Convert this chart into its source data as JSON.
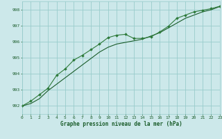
{
  "title": "Graphe pression niveau de la mer (hPa)",
  "background_color": "#cce8ea",
  "grid_color": "#99cccc",
  "line_color_dark": "#1a5c2a",
  "line_color_mid": "#2d7a3a",
  "xlim": [
    0,
    23
  ],
  "ylim": [
    991.5,
    998.5
  ],
  "yticks": [
    992,
    993,
    994,
    995,
    996,
    997,
    998
  ],
  "xticks": [
    0,
    1,
    2,
    3,
    4,
    5,
    6,
    7,
    8,
    9,
    10,
    11,
    12,
    13,
    14,
    15,
    16,
    17,
    18,
    19,
    20,
    21,
    22,
    23
  ],
  "hours": [
    0,
    1,
    2,
    3,
    4,
    5,
    6,
    7,
    8,
    9,
    10,
    11,
    12,
    13,
    14,
    15,
    16,
    17,
    18,
    19,
    20,
    21,
    22,
    23
  ],
  "pressure_main": [
    992.0,
    992.3,
    992.7,
    993.1,
    993.9,
    994.3,
    994.85,
    995.15,
    995.5,
    995.85,
    996.25,
    996.4,
    996.45,
    996.2,
    996.2,
    996.3,
    996.6,
    996.95,
    997.45,
    997.65,
    997.85,
    997.95,
    998.05,
    998.2
  ],
  "pressure_smooth": [
    992.0,
    992.15,
    992.45,
    992.95,
    993.35,
    993.75,
    994.15,
    994.55,
    994.95,
    995.35,
    995.65,
    995.85,
    995.95,
    996.05,
    996.15,
    996.35,
    996.55,
    996.85,
    997.15,
    997.45,
    997.65,
    997.85,
    997.98,
    998.18
  ]
}
